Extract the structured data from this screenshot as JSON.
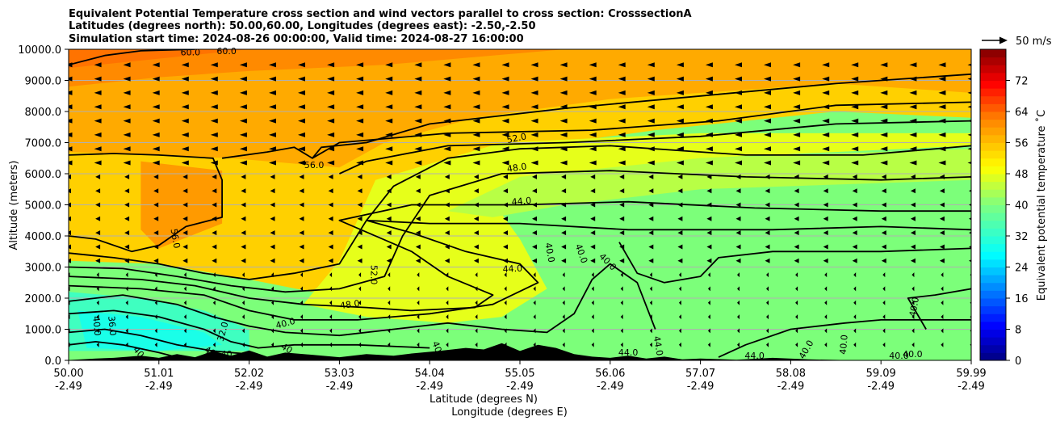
{
  "chart_data": {
    "type": "heatmap",
    "title": [
      "Equivalent Potential Temperature cross section and wind vectors parallel to cross section: CrosssectionA",
      "Latitudes (degrees north): 50.00,60.00, Longitudes (degrees east): -2.50,-2.50",
      "Simulation start time: 2024-08-26 00:00:00, Valid time: 2024-08-27 16:00:00"
    ],
    "ylabel": "Altitude (meters)",
    "xlabel_lat": "Latitude (degrees N)",
    "xlabel_lon": "Longitude (degrees E)",
    "ylim": [
      0,
      10000
    ],
    "yticks": [
      "0.0",
      "1000.0",
      "2000.0",
      "3000.0",
      "4000.0",
      "5000.0",
      "6000.0",
      "7000.0",
      "8000.0",
      "9000.0",
      "10000.0"
    ],
    "xticks_lat": [
      "50.00",
      "51.01",
      "52.02",
      "53.03",
      "54.04",
      "55.05",
      "56.06",
      "57.07",
      "58.08",
      "59.09",
      "59.99"
    ],
    "xticks_lon": [
      "-2.49",
      "-2.49",
      "-2.49",
      "-2.49",
      "-2.49",
      "-2.49",
      "-2.49",
      "-2.49",
      "-2.49",
      "-2.49",
      "-2.49"
    ],
    "grid": "horizontal",
    "colorbar": {
      "label": "Equivalent potential temperature ˚C",
      "range": [
        0,
        80
      ],
      "ticks": [
        "0",
        "8",
        "16",
        "24",
        "32",
        "40",
        "48",
        "56",
        "64",
        "72"
      ],
      "colormap": "jet"
    },
    "wind_key": {
      "label": "50 m/s",
      "speed": 50
    },
    "contour_labels": [
      {
        "text": "60.0",
        "x": 0.135,
        "y": 0.98,
        "rot": 0
      },
      {
        "text": "60.0",
        "x": 0.175,
        "y": 0.985,
        "rot": 0
      },
      {
        "text": "56.0",
        "x": 0.272,
        "y": 0.618,
        "rot": 0
      },
      {
        "text": "52.0",
        "x": 0.497,
        "y": 0.705,
        "rot": -12
      },
      {
        "text": "48.0",
        "x": 0.497,
        "y": 0.61,
        "rot": -8
      },
      {
        "text": "44.0",
        "x": 0.502,
        "y": 0.502,
        "rot": -5
      },
      {
        "text": "56.0",
        "x": 0.115,
        "y": 0.39,
        "rot": 80
      },
      {
        "text": "52.0",
        "x": 0.335,
        "y": 0.275,
        "rot": 90
      },
      {
        "text": "40.0",
        "x": 0.53,
        "y": 0.345,
        "rot": 80
      },
      {
        "text": "40.0",
        "x": 0.565,
        "y": 0.34,
        "rot": 70
      },
      {
        "text": "40.0",
        "x": 0.595,
        "y": 0.31,
        "rot": 45
      },
      {
        "text": "44.0",
        "x": 0.492,
        "y": 0.285,
        "rot": -3
      },
      {
        "text": "48.0",
        "x": 0.312,
        "y": 0.17,
        "rot": -8
      },
      {
        "text": "40.0",
        "x": 0.241,
        "y": 0.11,
        "rot": -15
      },
      {
        "text": "32.0",
        "x": 0.174,
        "y": 0.09,
        "rot": -75
      },
      {
        "text": "36.0",
        "x": 0.045,
        "y": 0.11,
        "rot": 85
      },
      {
        "text": "40.0",
        "x": 0.028,
        "y": 0.11,
        "rot": 85
      },
      {
        "text": "40",
        "x": 0.075,
        "y": 0.02,
        "rot": 50
      },
      {
        "text": "40",
        "x": 0.155,
        "y": 0.02,
        "rot": 30
      },
      {
        "text": "40",
        "x": 0.175,
        "y": 0.01,
        "rot": 0
      },
      {
        "text": "40",
        "x": 0.24,
        "y": 0.03,
        "rot": 30
      },
      {
        "text": "40",
        "x": 0.405,
        "y": 0.04,
        "rot": 70
      },
      {
        "text": "44.0",
        "x": 0.62,
        "y": 0.015,
        "rot": 0
      },
      {
        "text": "44.0",
        "x": 0.65,
        "y": 0.045,
        "rot": 80
      },
      {
        "text": "44.0",
        "x": 0.76,
        "y": 0.005,
        "rot": 0
      },
      {
        "text": "40.0",
        "x": 0.82,
        "y": 0.03,
        "rot": -60
      },
      {
        "text": "40.0",
        "x": 0.862,
        "y": 0.05,
        "rot": -85
      },
      {
        "text": "40.0",
        "x": 0.92,
        "y": 0.005,
        "rot": 0
      },
      {
        "text": "40.0",
        "x": 0.935,
        "y": 0.01,
        "rot": 0
      },
      {
        "text": "40.0",
        "x": 0.94,
        "y": 0.17,
        "rot": -80
      }
    ]
  }
}
